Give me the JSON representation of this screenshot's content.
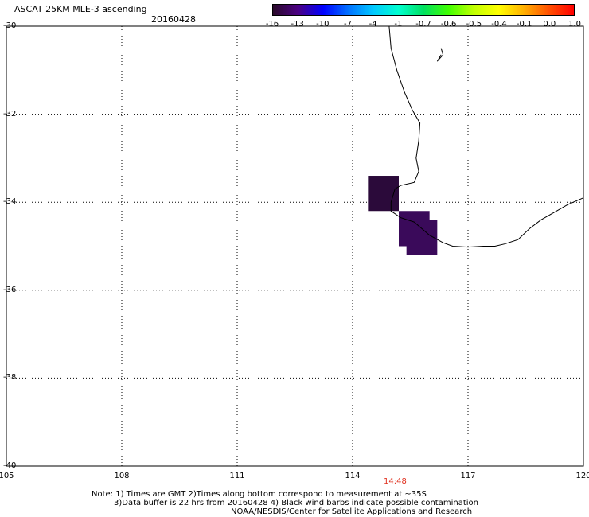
{
  "header": {
    "title": "ASCAT 25KM MLE-3 ascending",
    "date": "20160428"
  },
  "colorbar": {
    "colors": [
      "#2a0a2a",
      "#4b0082",
      "#0000ff",
      "#0070ff",
      "#00c8ff",
      "#00ffd0",
      "#00e060",
      "#40ff00",
      "#c0ff00",
      "#ffff00",
      "#ffb000",
      "#ff5000",
      "#ff0000"
    ],
    "tick_labels": [
      "-16",
      "-13",
      "-10",
      "-7",
      "-4",
      "-1",
      "-0.7",
      "-0.6",
      "-0.5",
      "-0.4",
      "-0.1",
      "0.0",
      "1.0"
    ]
  },
  "map": {
    "lat_range": [
      -40,
      -30
    ],
    "lon_range": [
      105,
      120
    ],
    "lat_labels": [
      "-30",
      "-32",
      "-34",
      "-36",
      "-38",
      "-40"
    ],
    "lon_labels": [
      "105",
      "108",
      "111",
      "114",
      "117",
      "120"
    ],
    "grid": "dotted",
    "data_cells": [
      {
        "lon_min": 114.4,
        "lon_max": 115.2,
        "lat_min": -34.2,
        "lat_max": -33.4,
        "color": "#2b0a3a"
      },
      {
        "lon_min": 115.2,
        "lon_max": 116.0,
        "lat_min": -35.0,
        "lat_max": -34.2,
        "color": "#3a0a5a"
      },
      {
        "lon_min": 115.4,
        "lon_max": 116.2,
        "lat_min": -35.2,
        "lat_max": -34.4,
        "color": "#3a0a5a"
      }
    ],
    "time_label": "14:48",
    "time_label_color": "#e0301e"
  },
  "notes": {
    "line1": "Note: 1) Times are GMT 2)Times along bottom correspond to measurement at ~35S",
    "line2": "3)Data buffer is 22 hrs from 20160428 4) Black wind barbs indicate possible contamination",
    "line3": "NOAA/NESDIS/Center for Satellite Applications and Research"
  }
}
